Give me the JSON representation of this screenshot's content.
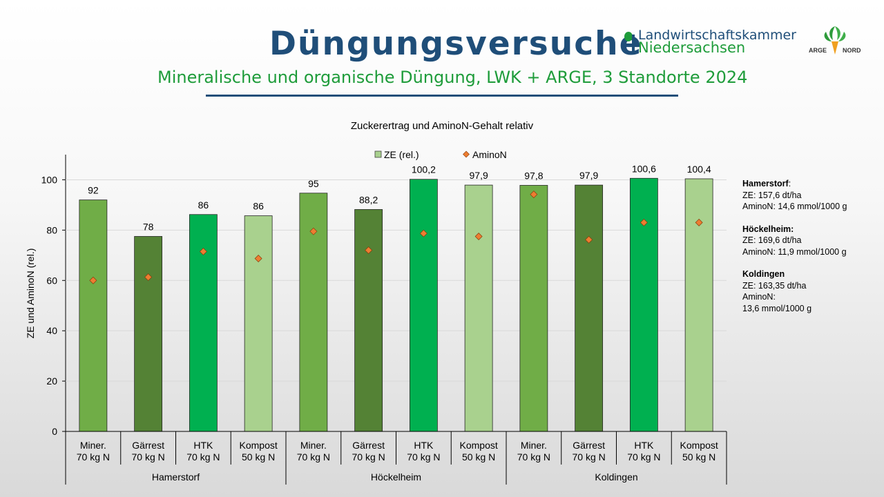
{
  "slide": {
    "title": "Düngungsversuche",
    "subtitle": "Mineralische und organische Düngung, LWK + ARGE, 3 Standorte 2024",
    "logo_lwk": {
      "line1": "Landwirtschaftskammer",
      "line2": "Niedersachsen"
    },
    "logo_arge": {
      "left": "ARGE",
      "right": "NORD"
    }
  },
  "colors": {
    "title": "#1f4e79",
    "subtitle": "#1e9c3a",
    "miner": "#70ad47",
    "gaerrest": "#548235",
    "htk": "#00b050",
    "kompost": "#a9d18e",
    "marker": "#ed7d31",
    "marker_outline": "#843c0c"
  },
  "chart_data": {
    "type": "bar",
    "title": "Zuckerertrag und AminoN-Gehalt relativ",
    "ylabel": "ZE und AminoN (rel.)",
    "ylim": [
      0,
      110
    ],
    "yticks": [
      0,
      20,
      40,
      60,
      80,
      100
    ],
    "legend": {
      "position": "top",
      "bar_label": "ZE (rel.)",
      "marker_label": "AminoN"
    },
    "groups": [
      {
        "name": "Hamerstorf",
        "categories": [
          {
            "line1": "Miner.",
            "line2": "70 kg N",
            "type": "miner",
            "ze": 92,
            "ze_label": "92",
            "aminon": 60
          },
          {
            "line1": "Gärrest",
            "line2": "70 kg N",
            "type": "gaerrest",
            "ze": 77.5,
            "ze_label": "78",
            "aminon": 61.3
          },
          {
            "line1": "HTK",
            "line2": "70 kg N",
            "type": "htk",
            "ze": 86.2,
            "ze_label": "86",
            "aminon": 71.5
          },
          {
            "line1": "Kompost",
            "line2": "50 kg N",
            "type": "kompost",
            "ze": 85.7,
            "ze_label": "86",
            "aminon": 68.7
          }
        ]
      },
      {
        "name": "Höckelheim",
        "categories": [
          {
            "line1": "Miner.",
            "line2": "70 kg N",
            "type": "miner",
            "ze": 94.7,
            "ze_label": "95",
            "aminon": 79.5
          },
          {
            "line1": "Gärrest",
            "line2": "70 kg N",
            "type": "gaerrest",
            "ze": 88.2,
            "ze_label": "88,2",
            "aminon": 72
          },
          {
            "line1": "HTK",
            "line2": "70 kg N",
            "type": "htk",
            "ze": 100.2,
            "ze_label": "100,2",
            "aminon": 78.7
          },
          {
            "line1": "Kompost",
            "line2": "50 kg N",
            "type": "kompost",
            "ze": 97.9,
            "ze_label": "97,9",
            "aminon": 77.5
          }
        ]
      },
      {
        "name": "Koldingen",
        "categories": [
          {
            "line1": "Miner.",
            "line2": "70 kg N",
            "type": "miner",
            "ze": 97.8,
            "ze_label": "97,8",
            "aminon": 94.2
          },
          {
            "line1": "Gärrest",
            "line2": "70 kg N",
            "type": "gaerrest",
            "ze": 97.9,
            "ze_label": "97,9",
            "aminon": 76.2
          },
          {
            "line1": "HTK",
            "line2": "70 kg N",
            "type": "htk",
            "ze": 100.6,
            "ze_label": "100,6",
            "aminon": 83
          },
          {
            "line1": "Kompost",
            "line2": "50 kg N",
            "type": "kompost",
            "ze": 100.4,
            "ze_label": "100,4",
            "aminon": 83
          }
        ]
      }
    ]
  },
  "notes": [
    {
      "location": "Hamerstorf",
      "suffix": ":",
      "lines": [
        "ZE: 157,6 dt/ha",
        "AminoN: 14,6 mmol/1000 g"
      ]
    },
    {
      "location": "Höckelheim:",
      "suffix": "",
      "lines": [
        "ZE: 169,6 dt/ha",
        "AminoN: 11,9 mmol/1000 g"
      ]
    },
    {
      "location": "Koldingen",
      "suffix": "",
      "lines": [
        "ZE: 163,35 dt/ha",
        "AminoN:",
        "13,6 mmol/1000 g"
      ]
    }
  ]
}
